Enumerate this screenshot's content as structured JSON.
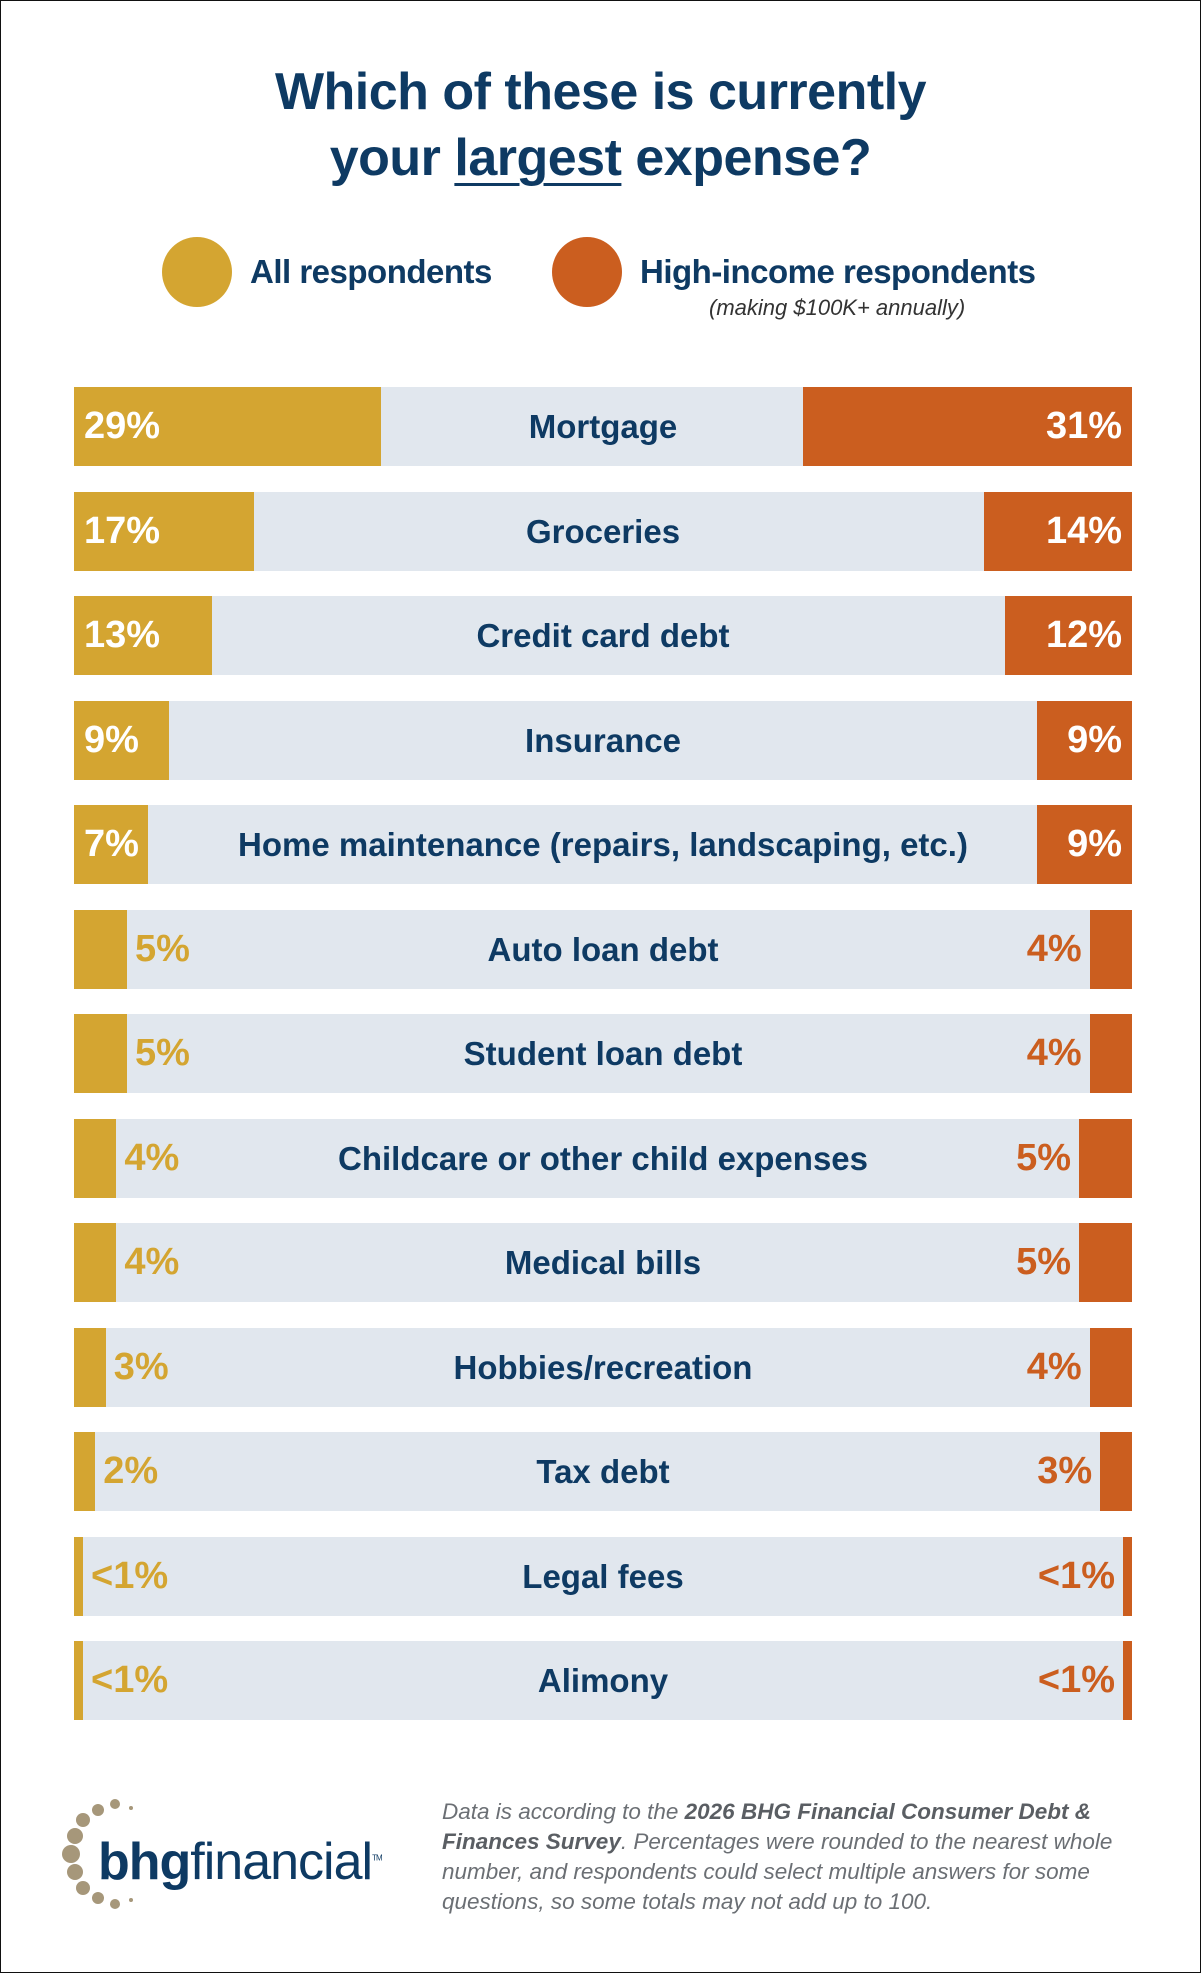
{
  "title": {
    "line1": "Which of these is currently",
    "line2_pre": "your ",
    "line2_emph": "largest",
    "line2_post": " expense?"
  },
  "legend": {
    "all": {
      "label": "All respondents",
      "color": "#D4A531"
    },
    "high": {
      "label": "High-income respondents",
      "sub": "(making $100K+ annually)",
      "color": "#CB5E1F"
    }
  },
  "colors": {
    "track": "#E1E7EE",
    "text": "#0E3A63"
  },
  "chart_data": {
    "type": "bar",
    "orientation": "horizontal-diverging",
    "title": "Which of these is currently your largest expense?",
    "unit": "%",
    "categories": [
      "Mortgage",
      "Groceries",
      "Credit card debt",
      "Insurance",
      "Home maintenance (repairs, landscaping, etc.)",
      "Auto loan debt",
      "Student loan debt",
      "Childcare or other child expenses",
      "Medical bills",
      "Hobbies/recreation",
      "Tax debt",
      "Legal fees",
      "Alimony"
    ],
    "series": [
      {
        "name": "All respondents",
        "values": [
          29,
          17,
          13,
          9,
          7,
          5,
          5,
          4,
          4,
          3,
          2,
          "<1",
          "<1"
        ],
        "labels": [
          "29%",
          "17%",
          "13%",
          "9%",
          "7%",
          "5%",
          "5%",
          "4%",
          "4%",
          "3%",
          "2%",
          "<1%",
          "<1%"
        ]
      },
      {
        "name": "High-income respondents",
        "values": [
          31,
          14,
          12,
          9,
          9,
          4,
          4,
          5,
          5,
          4,
          3,
          "<1",
          "<1"
        ],
        "labels": [
          "31%",
          "14%",
          "12%",
          "9%",
          "9%",
          "4%",
          "4%",
          "5%",
          "5%",
          "4%",
          "3%",
          "<1%",
          "<1%"
        ]
      }
    ]
  },
  "footer": {
    "pre": "Data is according to the ",
    "bold": "2026 BHG Financial Consumer Debt & Finances Survey",
    "post": ". Percentages were rounded to the nearest whole number, and respondents could select multiple answers for some questions, so some totals may not add up to 100."
  },
  "logo": {
    "bold": "bhg",
    "regular": "financial",
    "tm": "TM",
    "color": "#A6977A"
  }
}
